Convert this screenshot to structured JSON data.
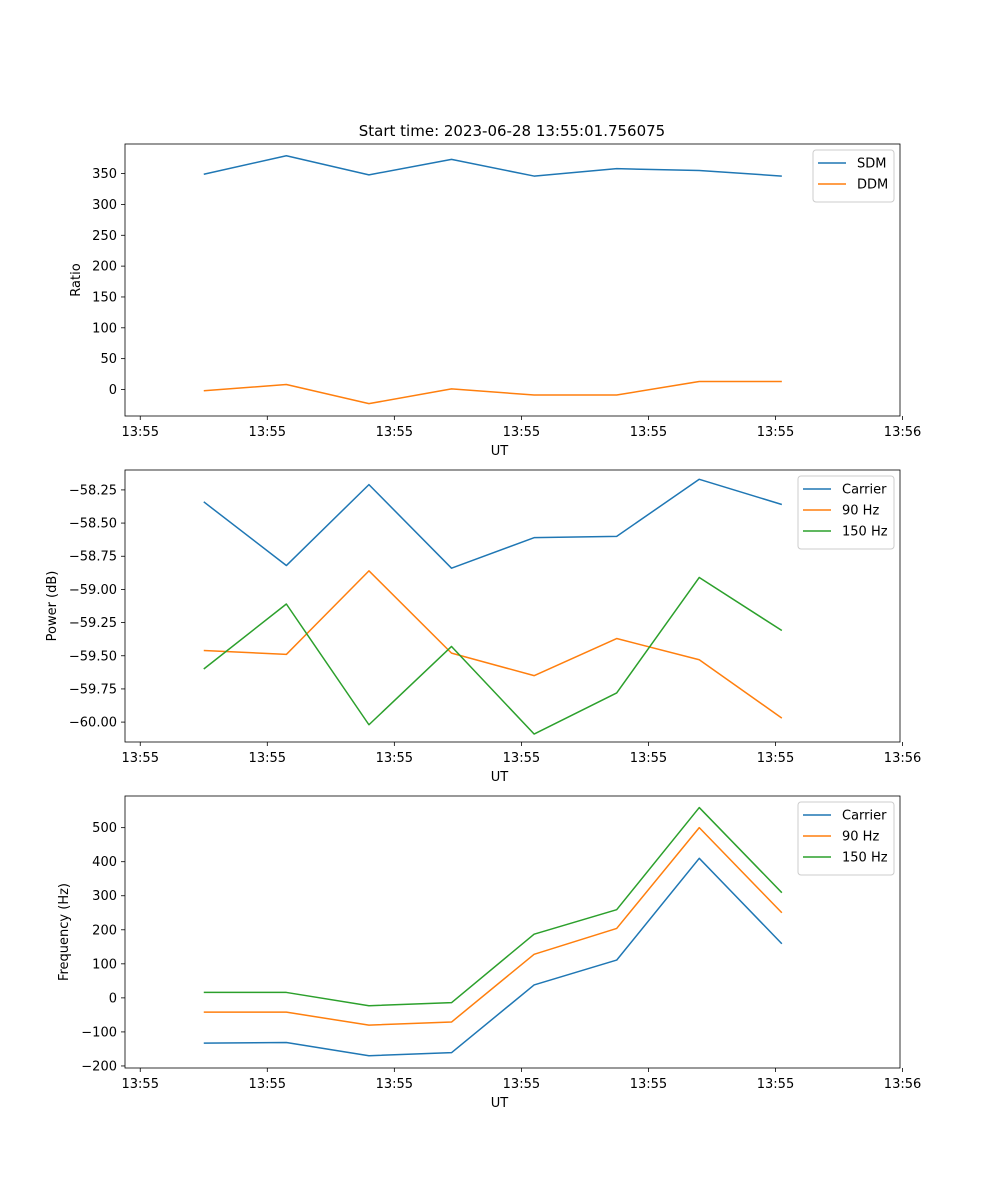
{
  "figure_title": "Start time: 2023-06-28 13:55:01.756075",
  "colors": {
    "c0": "#1f77b4",
    "c1": "#ff7f0e",
    "c2": "#2ca02c"
  },
  "chart_data": [
    {
      "type": "line",
      "title": "Start time: 2023-06-28 13:55:01.756075",
      "xlabel": "UT",
      "ylabel": "Ratio",
      "x_tick_labels": [
        "13:55",
        "13:55",
        "13:55",
        "13:55",
        "13:55",
        "13:55",
        "13:55"
      ],
      "x_tick_labels_last": "13:56",
      "x_ticks": [
        0,
        1,
        2,
        3,
        4,
        5,
        6
      ],
      "x": [
        0.5,
        1.15,
        1.8,
        2.45,
        3.1,
        3.75,
        4.4,
        5.05
      ],
      "xlim": [
        -0.12,
        5.98
      ],
      "ylim": [
        -43,
        398
      ],
      "yticks": [
        0,
        50,
        100,
        150,
        200,
        250,
        300,
        350
      ],
      "legend_position": "top-right",
      "series": [
        {
          "name": "SDM",
          "color": "#1f77b4",
          "values": [
            349,
            379,
            348,
            373,
            346,
            358,
            355,
            346
          ]
        },
        {
          "name": "DDM",
          "color": "#ff7f0e",
          "values": [
            -2,
            8,
            -23,
            1,
            -9,
            -9,
            13,
            13
          ]
        }
      ]
    },
    {
      "type": "line",
      "title": "",
      "xlabel": "UT",
      "ylabel": "Power (dB)",
      "x_tick_labels": [
        "13:55",
        "13:55",
        "13:55",
        "13:55",
        "13:55",
        "13:55",
        "13:55"
      ],
      "x_tick_labels_last": "13:56",
      "x_ticks": [
        0,
        1,
        2,
        3,
        4,
        5,
        6
      ],
      "x": [
        0.5,
        1.15,
        1.8,
        2.45,
        3.1,
        3.75,
        4.4,
        5.05
      ],
      "xlim": [
        -0.12,
        5.98
      ],
      "ylim": [
        -60.15,
        -58.1
      ],
      "yticks": [
        -60.0,
        -59.75,
        -59.5,
        -59.25,
        -59.0,
        -58.75,
        -58.5,
        -58.25
      ],
      "ytick_labels": [
        "−60.00",
        "−59.75",
        "−59.50",
        "−59.25",
        "−59.00",
        "−58.75",
        "−58.50",
        "−58.25"
      ],
      "legend_position": "top-right",
      "series": [
        {
          "name": "Carrier",
          "color": "#1f77b4",
          "values": [
            -58.34,
            -58.82,
            -58.21,
            -58.84,
            -58.61,
            -58.6,
            -58.17,
            -58.36
          ]
        },
        {
          "name": "90 Hz",
          "color": "#ff7f0e",
          "values": [
            -59.46,
            -59.49,
            -58.86,
            -59.48,
            -59.65,
            -59.37,
            -59.53,
            -59.97
          ]
        },
        {
          "name": "150 Hz",
          "color": "#2ca02c",
          "values": [
            -59.6,
            -59.11,
            -60.02,
            -59.43,
            -60.09,
            -59.78,
            -58.91,
            -59.31
          ]
        }
      ]
    },
    {
      "type": "line",
      "title": "",
      "xlabel": "UT",
      "ylabel": "Frequency (Hz)",
      "x_tick_labels": [
        "13:55",
        "13:55",
        "13:55",
        "13:55",
        "13:55",
        "13:55",
        "13:55"
      ],
      "x_tick_labels_last": "13:56",
      "x_ticks": [
        0,
        1,
        2,
        3,
        4,
        5,
        6
      ],
      "x": [
        0.5,
        1.15,
        1.8,
        2.45,
        3.1,
        3.75,
        4.4,
        5.05
      ],
      "xlim": [
        -0.12,
        5.98
      ],
      "ylim": [
        -206,
        593
      ],
      "yticks": [
        -200,
        -100,
        0,
        100,
        200,
        300,
        400,
        500
      ],
      "ytick_labels": [
        "−200",
        "−100",
        "0",
        "100",
        "200",
        "300",
        "400",
        "500"
      ],
      "legend_position": "top-right",
      "series": [
        {
          "name": "Carrier",
          "color": "#1f77b4",
          "values": [
            -133,
            -131,
            -170,
            -161,
            38,
            111,
            410,
            159
          ]
        },
        {
          "name": "90 Hz",
          "color": "#ff7f0e",
          "values": [
            -42,
            -42,
            -80,
            -71,
            128,
            204,
            500,
            250
          ]
        },
        {
          "name": "150 Hz",
          "color": "#2ca02c",
          "values": [
            16,
            16,
            -23,
            -14,
            187,
            259,
            559,
            309
          ]
        }
      ]
    }
  ]
}
